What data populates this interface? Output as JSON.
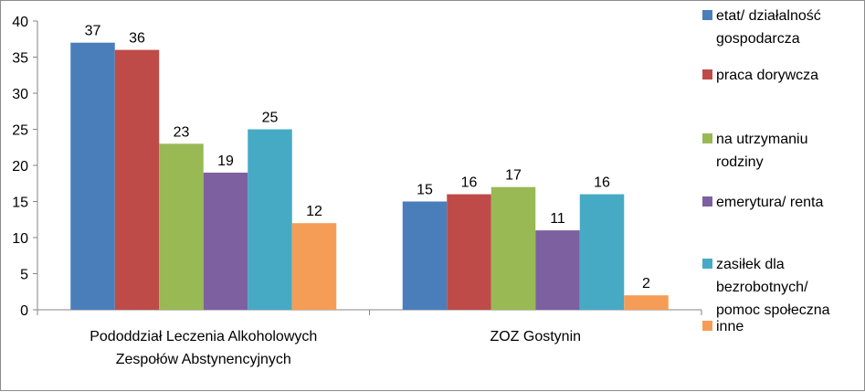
{
  "chart_data": {
    "type": "bar",
    "ylim": [
      0,
      40
    ],
    "yticks": [
      0,
      5,
      10,
      15,
      20,
      25,
      30,
      35,
      40
    ],
    "grid": false,
    "legend_position": "right",
    "categories": [
      [
        "Pododdział Leczenia Alkoholowych",
        "Zespołów Abstynencyjnych"
      ],
      [
        "ZOZ Gostynin"
      ]
    ],
    "series": [
      {
        "name": [
          "etat/ działalność",
          "gospodarcza"
        ],
        "color": "#4a7ebb",
        "values": [
          37,
          15
        ]
      },
      {
        "name": [
          "praca dorywcza"
        ],
        "color": "#be4b48",
        "values": [
          36,
          16
        ]
      },
      {
        "name": [
          "na utrzymaniu",
          "rodziny"
        ],
        "color": "#98b954",
        "values": [
          23,
          17
        ]
      },
      {
        "name": [
          "emerytura/ renta"
        ],
        "color": "#7d60a0",
        "values": [
          19,
          11
        ]
      },
      {
        "name": [
          "zasiłek dla",
          "bezrobotnych/",
          "pomoc społeczna"
        ],
        "color": "#46aac5",
        "values": [
          25,
          16
        ]
      },
      {
        "name": [
          "inne"
        ],
        "color": "#f59d56",
        "values": [
          12,
          2
        ]
      }
    ]
  }
}
